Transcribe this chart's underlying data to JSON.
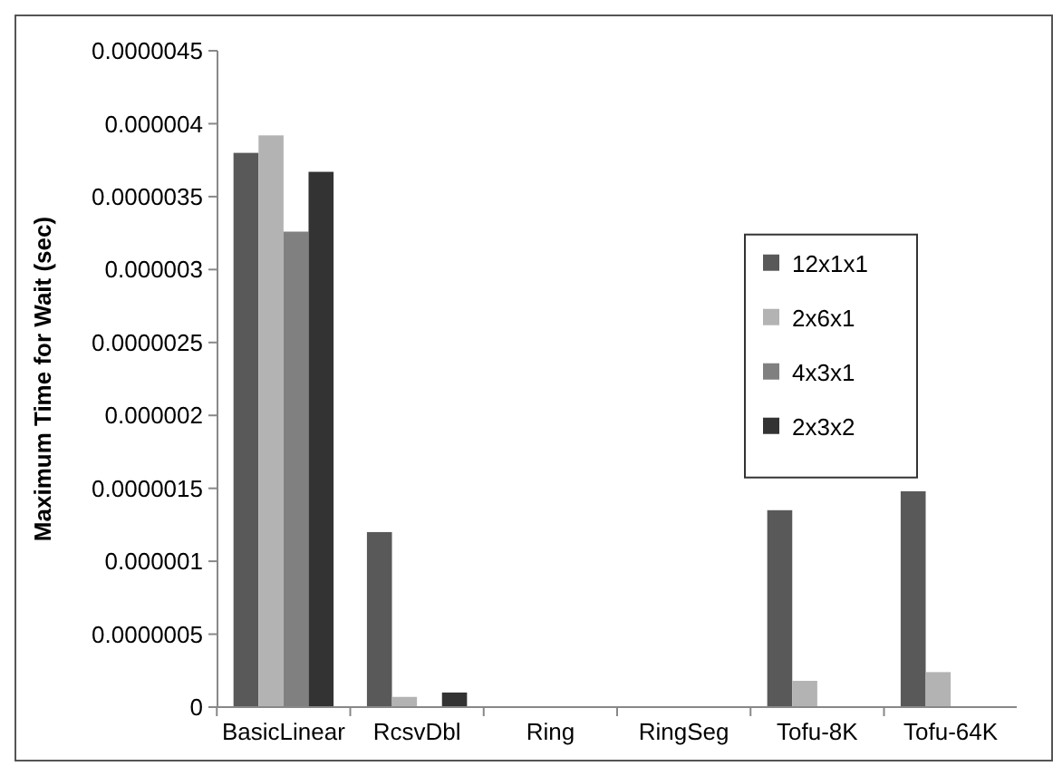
{
  "chart_data": {
    "type": "bar",
    "ylabel": "Maximum Time for Wait (sec)",
    "categories": [
      "BasicLinear",
      "RcsvDbl",
      "Ring",
      "RingSeg",
      "Tofu-8K",
      "Tofu-64K"
    ],
    "series": [
      {
        "name": "12x1x1",
        "color": "#595959",
        "values": [
          3.8e-06,
          1.2e-06,
          0,
          0,
          1.35e-06,
          1.48e-06
        ]
      },
      {
        "name": "2x6x1",
        "color": "#b3b3b3",
        "values": [
          3.92e-06,
          7e-08,
          0,
          0,
          1.8e-07,
          2.4e-07
        ]
      },
      {
        "name": "4x3x1",
        "color": "#808080",
        "values": [
          3.26e-06,
          0,
          0,
          0,
          0,
          0
        ]
      },
      {
        "name": "2x3x2",
        "color": "#333333",
        "values": [
          3.67e-06,
          1e-07,
          0,
          0,
          0,
          0
        ]
      }
    ],
    "ylim": [
      0,
      4.5e-06
    ],
    "yticks": [
      {
        "value": 0,
        "label": "0"
      },
      {
        "value": 5e-07,
        "label": "0.0000005"
      },
      {
        "value": 1e-06,
        "label": "0.000001"
      },
      {
        "value": 1.5e-06,
        "label": "0.0000015"
      },
      {
        "value": 2e-06,
        "label": "0.000002"
      },
      {
        "value": 2.5e-06,
        "label": "0.0000025"
      },
      {
        "value": 3e-06,
        "label": "0.000003"
      },
      {
        "value": 3.5e-06,
        "label": "0.0000035"
      },
      {
        "value": 4e-06,
        "label": "0.000004"
      },
      {
        "value": 4.5e-06,
        "label": "0.0000045"
      }
    ],
    "grid": false,
    "legend": "right"
  }
}
